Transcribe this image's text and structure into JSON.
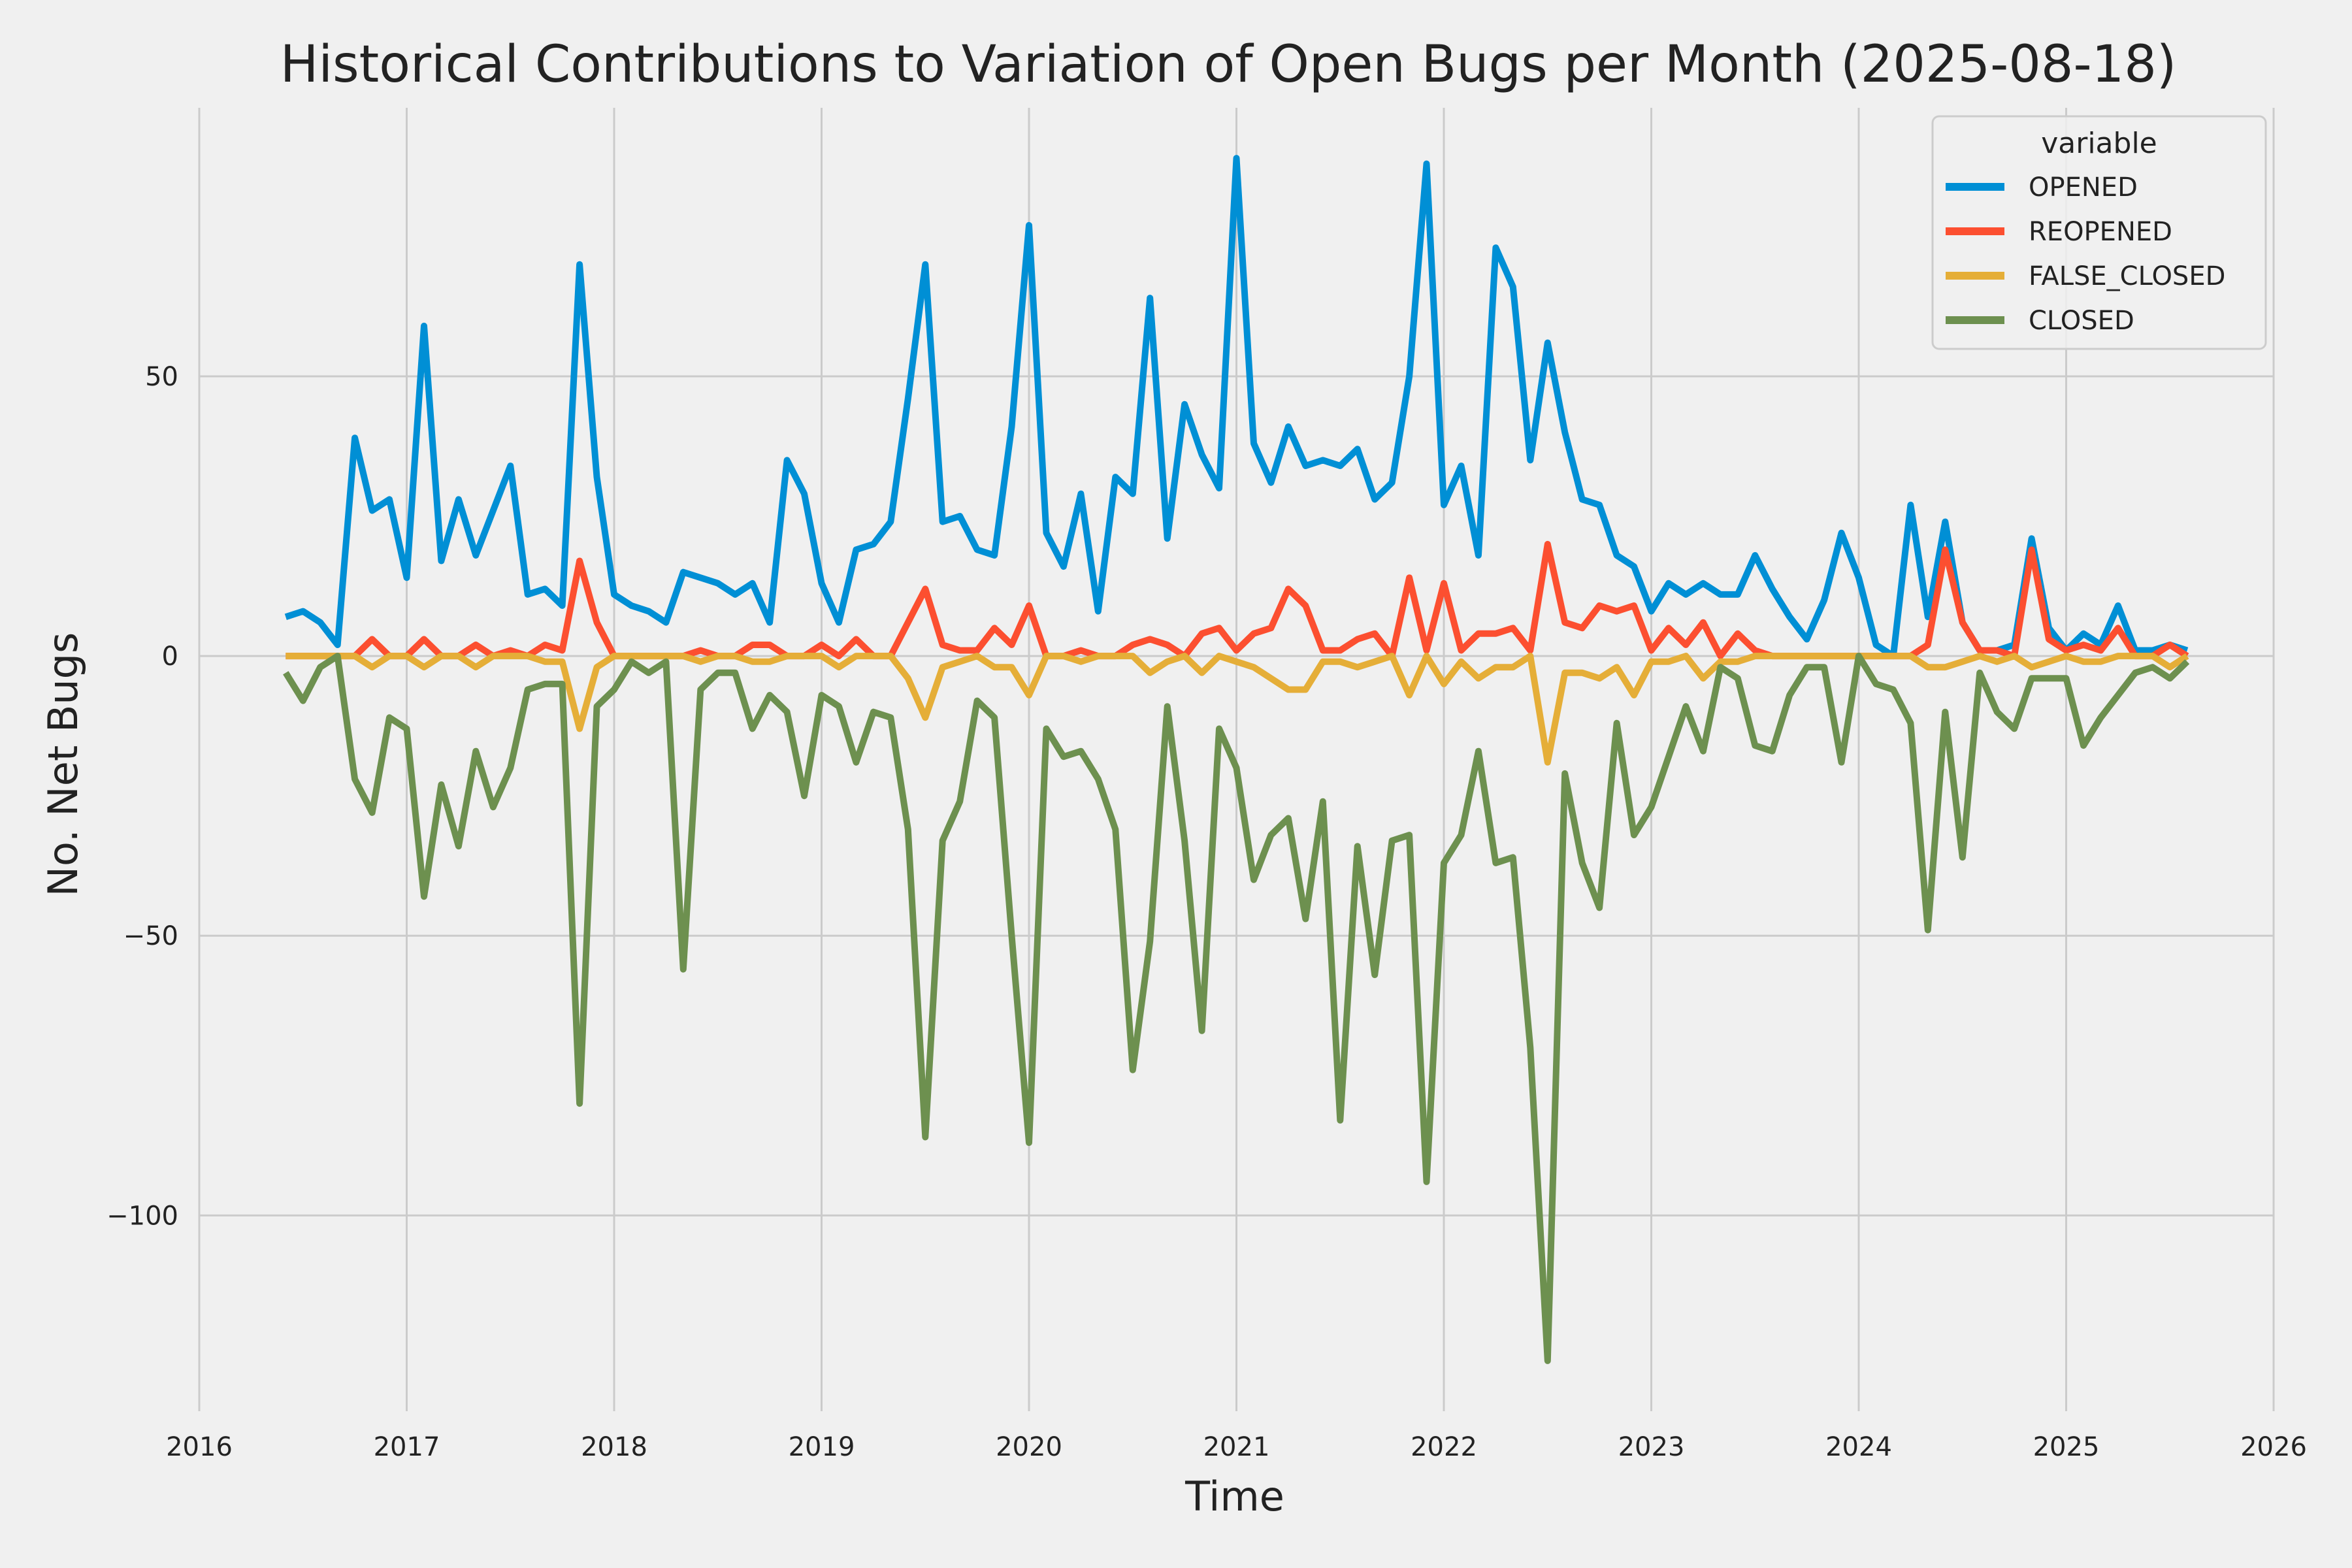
{
  "chart_data": {
    "type": "line",
    "title": "Historical Contributions to Variation of Open Bugs per Month (2025-08-18)",
    "xlabel": "Time",
    "ylabel": "No. Net Bugs",
    "xlim": [
      2016,
      2026
    ],
    "ylim": [
      -135,
      98
    ],
    "xticks": [
      {
        "value": 2016,
        "label": "2016"
      },
      {
        "value": 2017,
        "label": "2017"
      },
      {
        "value": 2018,
        "label": "2018"
      },
      {
        "value": 2019,
        "label": "2019"
      },
      {
        "value": 2020,
        "label": "2020"
      },
      {
        "value": 2021,
        "label": "2021"
      },
      {
        "value": 2022,
        "label": "2022"
      },
      {
        "value": 2023,
        "label": "2023"
      },
      {
        "value": 2024,
        "label": "2024"
      },
      {
        "value": 2025,
        "label": "2025"
      },
      {
        "value": 2026,
        "label": "2026"
      }
    ],
    "yticks": [
      {
        "value": 50,
        "label": "50"
      },
      {
        "value": 0,
        "label": "0"
      },
      {
        "value": -50,
        "label": "−50"
      },
      {
        "value": -100,
        "label": "−100"
      }
    ],
    "grid": true,
    "legend": {
      "title": "variable",
      "position": "top-right"
    },
    "x": [
      "2016-06",
      "2016-07",
      "2016-08",
      "2016-09",
      "2016-10",
      "2016-11",
      "2016-12",
      "2017-01",
      "2017-02",
      "2017-03",
      "2017-04",
      "2017-05",
      "2017-06",
      "2017-07",
      "2017-08",
      "2017-09",
      "2017-10",
      "2017-11",
      "2017-12",
      "2018-01",
      "2018-02",
      "2018-03",
      "2018-04",
      "2018-05",
      "2018-06",
      "2018-07",
      "2018-08",
      "2018-09",
      "2018-10",
      "2018-11",
      "2018-12",
      "2019-01",
      "2019-02",
      "2019-03",
      "2019-04",
      "2019-05",
      "2019-06",
      "2019-07",
      "2019-08",
      "2019-09",
      "2019-10",
      "2019-11",
      "2019-12",
      "2020-01",
      "2020-02",
      "2020-03",
      "2020-04",
      "2020-05",
      "2020-06",
      "2020-07",
      "2020-08",
      "2020-09",
      "2020-10",
      "2020-11",
      "2020-12",
      "2021-01",
      "2021-02",
      "2021-03",
      "2021-04",
      "2021-05",
      "2021-06",
      "2021-07",
      "2021-08",
      "2021-09",
      "2021-10",
      "2021-11",
      "2021-12",
      "2022-01",
      "2022-02",
      "2022-03",
      "2022-04",
      "2022-05",
      "2022-06",
      "2022-07",
      "2022-08",
      "2022-09",
      "2022-10",
      "2022-11",
      "2022-12",
      "2023-01",
      "2023-02",
      "2023-03",
      "2023-04",
      "2023-05",
      "2023-06",
      "2023-07",
      "2023-08",
      "2023-09",
      "2023-10",
      "2023-11",
      "2023-12",
      "2024-01",
      "2024-02",
      "2024-03",
      "2024-04",
      "2024-05",
      "2024-06",
      "2024-07",
      "2024-08",
      "2024-09",
      "2024-10",
      "2024-11",
      "2024-12",
      "2025-01",
      "2025-02",
      "2025-03",
      "2025-04",
      "2025-05",
      "2025-06",
      "2025-07",
      "2025-08"
    ],
    "series": [
      {
        "name": "OPENED",
        "color": "#008fd5",
        "values": [
          7,
          8,
          6,
          2,
          39,
          26,
          28,
          14,
          59,
          17,
          28,
          18,
          26,
          34,
          11,
          12,
          9,
          70,
          32,
          11,
          9,
          8,
          6,
          15,
          14,
          13,
          11,
          13,
          6,
          35,
          29,
          13,
          6,
          19,
          20,
          24,
          46,
          70,
          24,
          25,
          19,
          18,
          41,
          77,
          22,
          16,
          29,
          8,
          32,
          29,
          64,
          21,
          45,
          36,
          30,
          89,
          38,
          31,
          41,
          34,
          35,
          34,
          37,
          28,
          31,
          50,
          88,
          27,
          34,
          18,
          73,
          66,
          35,
          56,
          40,
          28,
          27,
          18,
          16,
          8,
          13,
          11,
          13,
          11,
          11,
          18,
          12,
          7,
          3,
          10,
          22,
          14,
          2,
          0,
          27,
          7,
          24,
          6,
          1,
          1,
          2,
          21,
          5,
          1,
          4,
          2,
          9,
          1,
          1,
          2,
          1
        ]
      },
      {
        "name": "REOPENED",
        "color": "#fc4f30",
        "values": [
          0,
          0,
          0,
          0,
          0,
          3,
          0,
          0,
          3,
          0,
          0,
          2,
          0,
          1,
          0,
          2,
          1,
          17,
          6,
          0,
          0,
          0,
          0,
          0,
          1,
          0,
          0,
          2,
          2,
          0,
          0,
          2,
          0,
          3,
          0,
          0,
          6,
          12,
          2,
          1,
          1,
          5,
          2,
          9,
          0,
          0,
          1,
          0,
          0,
          2,
          3,
          2,
          0,
          4,
          5,
          1,
          4,
          5,
          12,
          9,
          1,
          1,
          3,
          4,
          0,
          14,
          1,
          13,
          1,
          4,
          4,
          5,
          1,
          20,
          6,
          5,
          9,
          8,
          9,
          1,
          5,
          2,
          6,
          0,
          4,
          1,
          0,
          0,
          0,
          0,
          0,
          0,
          0,
          0,
          0,
          2,
          19,
          6,
          1,
          1,
          0,
          19,
          3,
          1,
          2,
          1,
          5,
          0,
          0,
          2,
          0
        ]
      },
      {
        "name": "FALSE_CLOSED",
        "color": "#e5ae38",
        "values": [
          0,
          0,
          0,
          0,
          0,
          -2,
          0,
          0,
          -2,
          0,
          0,
          -2,
          0,
          0,
          0,
          -1,
          -1,
          -13,
          -2,
          0,
          0,
          0,
          0,
          0,
          -1,
          0,
          0,
          -1,
          -1,
          0,
          0,
          0,
          -2,
          0,
          0,
          0,
          -4,
          -11,
          -2,
          -1,
          0,
          -2,
          -2,
          -7,
          0,
          0,
          -1,
          0,
          0,
          0,
          -3,
          -1,
          0,
          -3,
          0,
          -1,
          -2,
          -4,
          -6,
          -6,
          -1,
          -1,
          -2,
          -1,
          0,
          -7,
          0,
          -5,
          -1,
          -4,
          -2,
          -2,
          0,
          -19,
          -3,
          -3,
          -4,
          -2,
          -7,
          -1,
          -1,
          0,
          -4,
          -1,
          -1,
          0,
          0,
          0,
          0,
          0,
          0,
          0,
          0,
          0,
          0,
          -2,
          -2,
          -1,
          0,
          -1,
          0,
          -2,
          -1,
          0,
          -1,
          -1,
          0,
          0,
          0,
          -2,
          0
        ]
      },
      {
        "name": "CLOSED",
        "color": "#6d904f",
        "values": [
          -3,
          -8,
          -2,
          0,
          -22,
          -28,
          -11,
          -13,
          -43,
          -23,
          -34,
          -17,
          -27,
          -20,
          -6,
          -5,
          -5,
          -80,
          -9,
          -6,
          -1,
          -3,
          -1,
          -56,
          -6,
          -3,
          -3,
          -13,
          -7,
          -10,
          -25,
          -7,
          -9,
          -19,
          -10,
          -11,
          -31,
          -86,
          -33,
          -26,
          -8,
          -11,
          -50,
          -87,
          -13,
          -18,
          -17,
          -22,
          -31,
          -74,
          -51,
          -9,
          -33,
          -67,
          -13,
          -20,
          -40,
          -32,
          -29,
          -47,
          -26,
          -83,
          -34,
          -57,
          -33,
          -32,
          -94,
          -37,
          -32,
          -17,
          -37,
          -36,
          -70,
          -126,
          -21,
          -37,
          -45,
          -12,
          -32,
          -27,
          -18,
          -9,
          -17,
          -2,
          -4,
          -16,
          -17,
          -7,
          -2,
          -2,
          -19,
          0,
          -5,
          -6,
          -12,
          -49,
          -10,
          -36,
          -3,
          -10,
          -13,
          -4,
          -4,
          -4,
          -16,
          -11,
          -7,
          -3,
          -2,
          -4,
          -1
        ]
      }
    ]
  }
}
